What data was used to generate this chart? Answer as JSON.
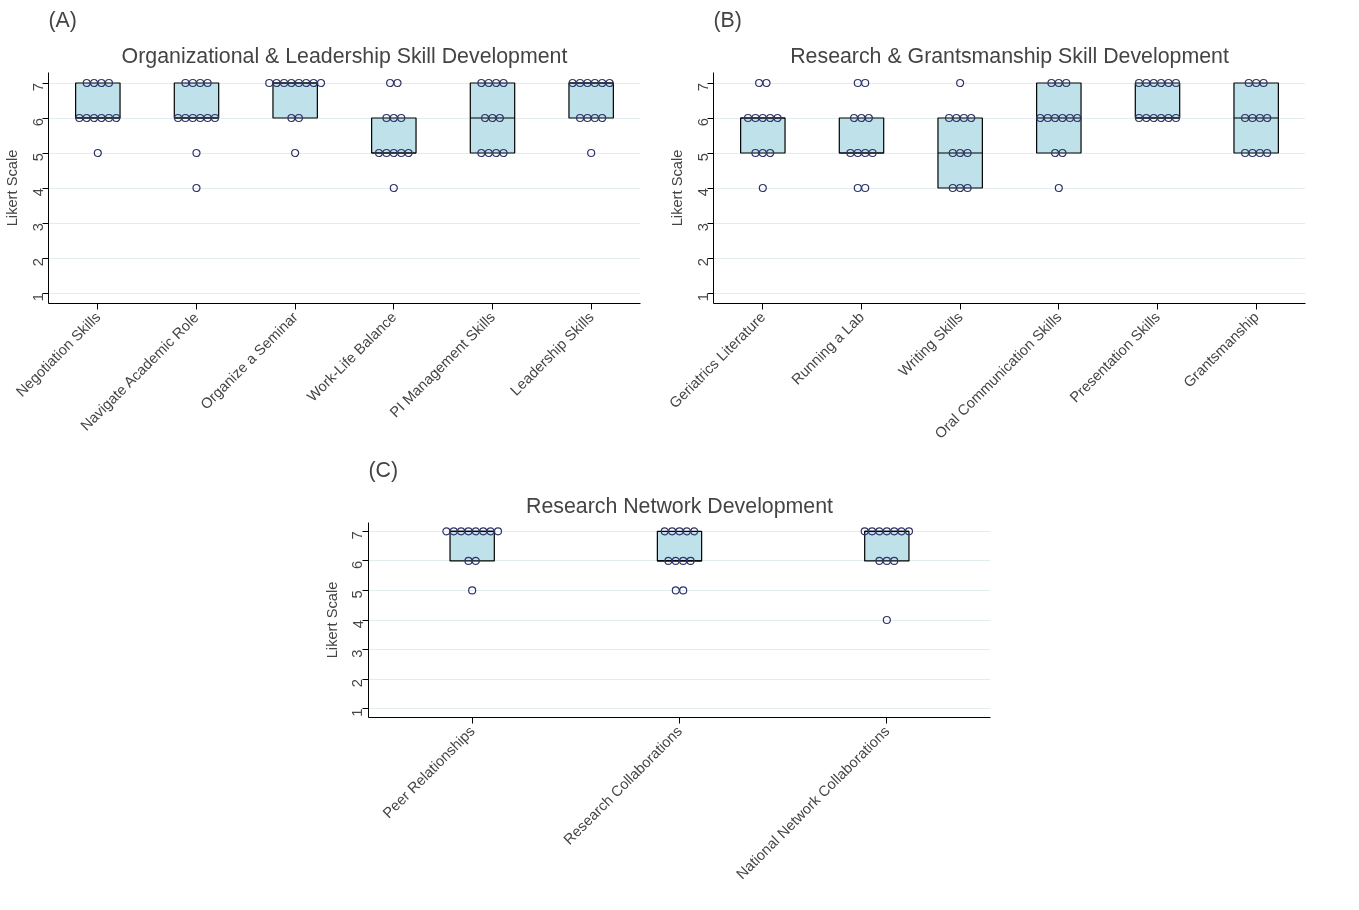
{
  "chart_data": [
    {
      "type": "box",
      "title": "Organizational & Leadership Skill Development",
      "annotations": [
        "(A)"
      ],
      "ylabel": "Likert Scale",
      "categories": [
        "Negotiation Skills",
        "Navigate Academic Role",
        "Organize a Seminar",
        "Work-Life Balance",
        "PI Management Skills",
        "Leadership Skills"
      ],
      "ylim": [
        0.7,
        7.3
      ],
      "yticks": [
        1,
        2,
        3,
        4,
        5,
        6,
        7
      ],
      "grid": "y",
      "marker": "circle",
      "series": [
        {
          "type": "box",
          "color": "#bfe1ea",
          "boxes": [
            {
              "low": 6,
              "q1": 6,
              "median": 6,
              "q3": 7,
              "high": 7
            },
            {
              "low": 6,
              "q1": 6,
              "median": 6,
              "q3": 7,
              "high": 7
            },
            {
              "low": 6,
              "q1": 6,
              "median": 7,
              "q3": 7,
              "high": 7
            },
            {
              "low": 5,
              "q1": 5,
              "median": 5,
              "q3": 6,
              "high": 6
            },
            {
              "low": 5,
              "q1": 5,
              "median": 6,
              "q3": 7,
              "high": 7
            },
            {
              "low": 6,
              "q1": 6,
              "median": 7,
              "q3": 7,
              "high": 7
            }
          ]
        },
        {
          "type": "scatter",
          "color": "#2e3468",
          "x": [
            "Negotiation Skills",
            "Negotiation Skills",
            "Negotiation Skills",
            "Negotiation Skills",
            "Negotiation Skills",
            "Negotiation Skills",
            "Negotiation Skills",
            "Negotiation Skills",
            "Negotiation Skills",
            "Negotiation Skills",
            "Negotiation Skills",
            "Navigate Academic Role",
            "Navigate Academic Role",
            "Navigate Academic Role",
            "Navigate Academic Role",
            "Navigate Academic Role",
            "Navigate Academic Role",
            "Navigate Academic Role",
            "Navigate Academic Role",
            "Navigate Academic Role",
            "Navigate Academic Role",
            "Navigate Academic Role",
            "Navigate Academic Role",
            "Organize a Seminar",
            "Organize a Seminar",
            "Organize a Seminar",
            "Organize a Seminar",
            "Organize a Seminar",
            "Organize a Seminar",
            "Organize a Seminar",
            "Organize a Seminar",
            "Organize a Seminar",
            "Organize a Seminar",
            "Organize a Seminar",
            "Work-Life Balance",
            "Work-Life Balance",
            "Work-Life Balance",
            "Work-Life Balance",
            "Work-Life Balance",
            "Work-Life Balance",
            "Work-Life Balance",
            "Work-Life Balance",
            "Work-Life Balance",
            "Work-Life Balance",
            "Work-Life Balance",
            "PI Management Skills",
            "PI Management Skills",
            "PI Management Skills",
            "PI Management Skills",
            "PI Management Skills",
            "PI Management Skills",
            "PI Management Skills",
            "PI Management Skills",
            "PI Management Skills",
            "PI Management Skills",
            "PI Management Skills",
            "Leadership Skills",
            "Leadership Skills",
            "Leadership Skills",
            "Leadership Skills",
            "Leadership Skills",
            "Leadership Skills",
            "Leadership Skills",
            "Leadership Skills",
            "Leadership Skills",
            "Leadership Skills",
            "Leadership Skills"
          ],
          "values": [
            7,
            7,
            7,
            7,
            6,
            6,
            6,
            6,
            6,
            6,
            5,
            7,
            7,
            7,
            7,
            6,
            6,
            6,
            6,
            6,
            6,
            5,
            4,
            7,
            7,
            7,
            7,
            7,
            7,
            7,
            7,
            6,
            6,
            5,
            7,
            7,
            6,
            6,
            6,
            5,
            5,
            5,
            5,
            5,
            4,
            7,
            7,
            7,
            7,
            6,
            6,
            6,
            5,
            5,
            5,
            5,
            7,
            7,
            7,
            7,
            7,
            7,
            6,
            6,
            6,
            6,
            5
          ]
        }
      ]
    },
    {
      "type": "box",
      "title": "Research & Grantsmanship Skill Development",
      "annotations": [
        "(B)"
      ],
      "ylabel": "Likert Scale",
      "categories": [
        "Geriatrics Literature",
        "Running a Lab",
        "Writing Skills",
        "Oral Communication Skills",
        "Presentation Skills",
        "Grantsmanship"
      ],
      "ylim": [
        0.7,
        7.3
      ],
      "yticks": [
        1,
        2,
        3,
        4,
        5,
        6,
        7
      ],
      "grid": "y",
      "marker": "circle",
      "series": [
        {
          "type": "box",
          "color": "#bfe1ea",
          "boxes": [
            {
              "low": 5,
              "q1": 5,
              "median": 6,
              "q3": 6,
              "high": 6
            },
            {
              "low": 5,
              "q1": 5,
              "median": 5,
              "q3": 6,
              "high": 6
            },
            {
              "low": 4,
              "q1": 4,
              "median": 5,
              "q3": 6,
              "high": 6
            },
            {
              "low": 5,
              "q1": 5,
              "median": 6,
              "q3": 7,
              "high": 7
            },
            {
              "low": 6,
              "q1": 6,
              "median": 6,
              "q3": 7,
              "high": 7
            },
            {
              "low": 5,
              "q1": 5,
              "median": 6,
              "q3": 7,
              "high": 7
            }
          ]
        },
        {
          "type": "scatter",
          "color": "#2e3468",
          "x": [
            "Geriatrics Literature",
            "Geriatrics Literature",
            "Geriatrics Literature",
            "Geriatrics Literature",
            "Geriatrics Literature",
            "Geriatrics Literature",
            "Geriatrics Literature",
            "Geriatrics Literature",
            "Geriatrics Literature",
            "Geriatrics Literature",
            "Geriatrics Literature",
            "Running a Lab",
            "Running a Lab",
            "Running a Lab",
            "Running a Lab",
            "Running a Lab",
            "Running a Lab",
            "Running a Lab",
            "Running a Lab",
            "Running a Lab",
            "Running a Lab",
            "Running a Lab",
            "Writing Skills",
            "Writing Skills",
            "Writing Skills",
            "Writing Skills",
            "Writing Skills",
            "Writing Skills",
            "Writing Skills",
            "Writing Skills",
            "Writing Skills",
            "Writing Skills",
            "Writing Skills",
            "Oral Communication Skills",
            "Oral Communication Skills",
            "Oral Communication Skills",
            "Oral Communication Skills",
            "Oral Communication Skills",
            "Oral Communication Skills",
            "Oral Communication Skills",
            "Oral Communication Skills",
            "Oral Communication Skills",
            "Oral Communication Skills",
            "Oral Communication Skills",
            "Oral Communication Skills",
            "Presentation Skills",
            "Presentation Skills",
            "Presentation Skills",
            "Presentation Skills",
            "Presentation Skills",
            "Presentation Skills",
            "Presentation Skills",
            "Presentation Skills",
            "Presentation Skills",
            "Presentation Skills",
            "Presentation Skills",
            "Presentation Skills",
            "Grantsmanship",
            "Grantsmanship",
            "Grantsmanship",
            "Grantsmanship",
            "Grantsmanship",
            "Grantsmanship",
            "Grantsmanship",
            "Grantsmanship",
            "Grantsmanship",
            "Grantsmanship",
            "Grantsmanship"
          ],
          "values": [
            7,
            7,
            6,
            6,
            6,
            6,
            6,
            5,
            5,
            5,
            4,
            7,
            7,
            6,
            6,
            6,
            5,
            5,
            5,
            5,
            4,
            4,
            7,
            6,
            6,
            6,
            6,
            5,
            5,
            5,
            4,
            4,
            4,
            7,
            7,
            7,
            6,
            6,
            6,
            6,
            6,
            6,
            5,
            5,
            4,
            7,
            7,
            7,
            7,
            7,
            7,
            6,
            6,
            6,
            6,
            6,
            6,
            7,
            7,
            7,
            6,
            6,
            6,
            6,
            5,
            5,
            5,
            5
          ]
        }
      ]
    },
    {
      "type": "box",
      "title": "Research Network Development",
      "annotations": [
        "(C)"
      ],
      "ylabel": "Likert Scale",
      "categories": [
        "Peer Relationships",
        "Research Collaborations",
        "National Network Collaborations"
      ],
      "ylim": [
        0.7,
        7.3
      ],
      "yticks": [
        1,
        2,
        3,
        4,
        5,
        6,
        7
      ],
      "grid": "y",
      "marker": "circle",
      "series": [
        {
          "type": "box",
          "color": "#bfe1ea",
          "boxes": [
            {
              "low": 6,
              "q1": 6,
              "median": 7,
              "q3": 7,
              "high": 7
            },
            {
              "low": 6,
              "q1": 6,
              "median": 6,
              "q3": 7,
              "high": 7
            },
            {
              "low": 6,
              "q1": 6,
              "median": 7,
              "q3": 7,
              "high": 7
            }
          ]
        },
        {
          "type": "scatter",
          "color": "#2e3468",
          "x": [
            "Peer Relationships",
            "Peer Relationships",
            "Peer Relationships",
            "Peer Relationships",
            "Peer Relationships",
            "Peer Relationships",
            "Peer Relationships",
            "Peer Relationships",
            "Peer Relationships",
            "Peer Relationships",
            "Peer Relationships",
            "Research Collaborations",
            "Research Collaborations",
            "Research Collaborations",
            "Research Collaborations",
            "Research Collaborations",
            "Research Collaborations",
            "Research Collaborations",
            "Research Collaborations",
            "Research Collaborations",
            "Research Collaborations",
            "Research Collaborations",
            "National Network Collaborations",
            "National Network Collaborations",
            "National Network Collaborations",
            "National Network Collaborations",
            "National Network Collaborations",
            "National Network Collaborations",
            "National Network Collaborations",
            "National Network Collaborations",
            "National Network Collaborations",
            "National Network Collaborations",
            "National Network Collaborations"
          ],
          "values": [
            7,
            7,
            7,
            7,
            7,
            7,
            7,
            7,
            6,
            6,
            5,
            7,
            7,
            7,
            7,
            7,
            6,
            6,
            6,
            6,
            5,
            5,
            7,
            7,
            7,
            7,
            7,
            7,
            7,
            6,
            6,
            6,
            4
          ]
        }
      ]
    }
  ]
}
